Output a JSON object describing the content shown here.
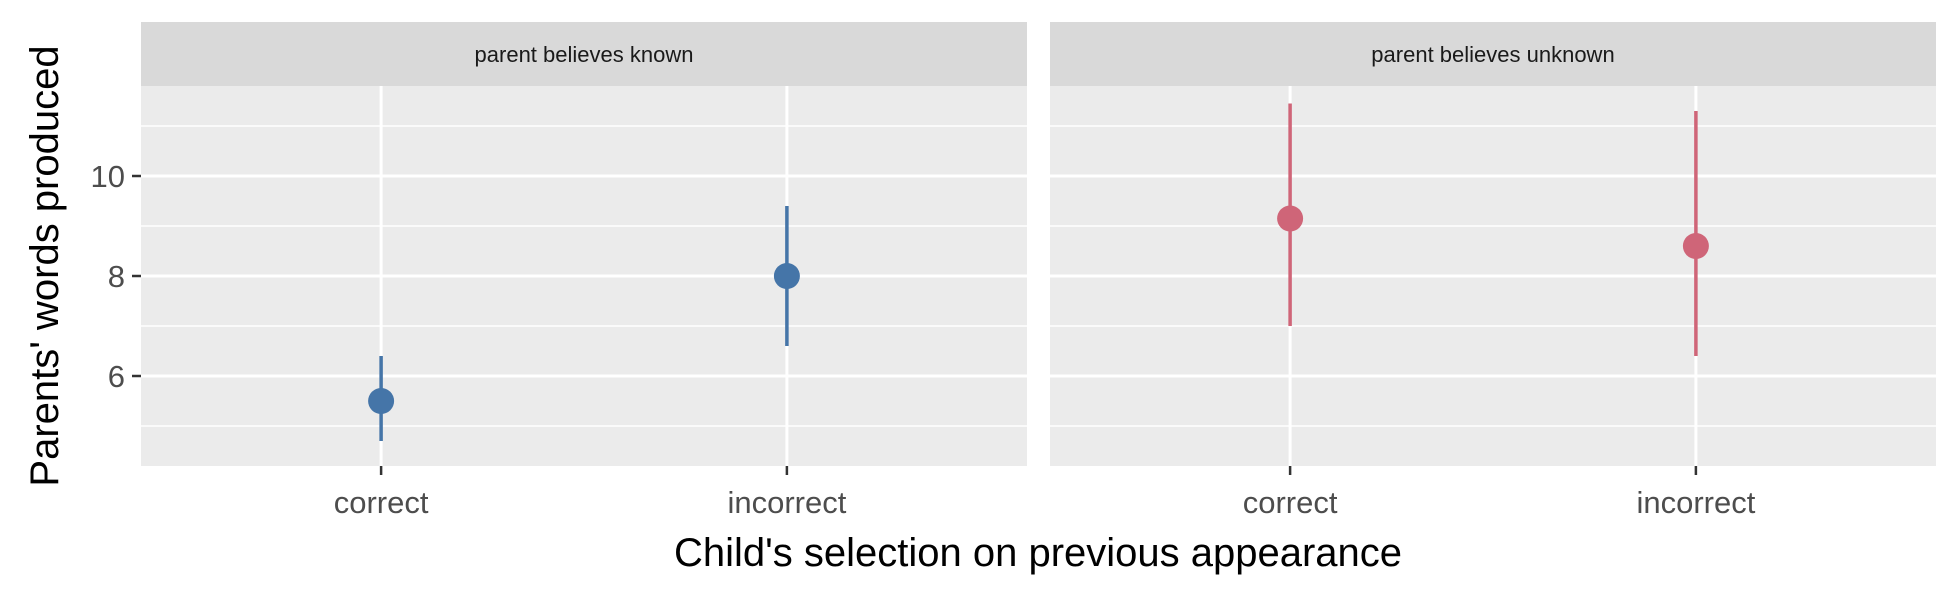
{
  "chart_data": {
    "type": "scatter",
    "subtype": "pointrange",
    "title": "",
    "xlabel": "Child's selection on previous appearance",
    "ylabel": "Parents' words produced",
    "categories": [
      "correct",
      "incorrect"
    ],
    "ylim": [
      4.2,
      11.8
    ],
    "y_ticks": [
      6,
      8,
      10
    ],
    "grid": true,
    "legend": "none",
    "panels": [
      {
        "label": "parent believes known",
        "color": "#4575a8",
        "points": [
          {
            "x": "correct",
            "y": 5.5,
            "ymin": 4.7,
            "ymax": 6.4
          },
          {
            "x": "incorrect",
            "y": 8.0,
            "ymin": 6.6,
            "ymax": 9.4
          }
        ]
      },
      {
        "label": "parent believes unknown",
        "color": "#cf6578",
        "points": [
          {
            "x": "correct",
            "y": 9.15,
            "ymin": 7.0,
            "ymax": 11.45
          },
          {
            "x": "incorrect",
            "y": 8.6,
            "ymin": 6.4,
            "ymax": 11.3
          }
        ]
      }
    ]
  }
}
